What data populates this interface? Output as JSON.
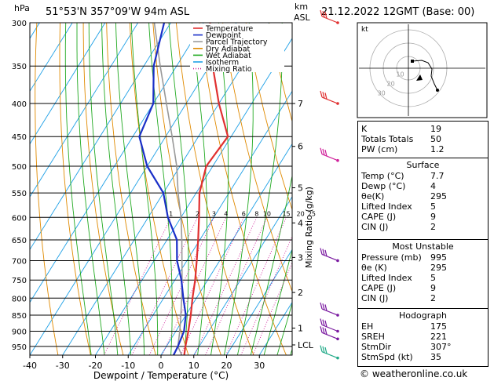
{
  "header": {
    "hpa_label": "hPa",
    "location": "51°53'N  357°09'W  94m  ASL",
    "km_label": "km",
    "asl_label": "ASL",
    "datetime": "21.12.2022  12GMT  (Base: 00)",
    "credit": "© weatheronline.co.uk"
  },
  "legend": {
    "items": [
      {
        "label": "Temperature",
        "color": "#e03030",
        "style": "solid"
      },
      {
        "label": "Dewpoint",
        "color": "#1a2fc8",
        "style": "solid"
      },
      {
        "label": "Parcel Trajectory",
        "color": "#999999",
        "style": "solid"
      },
      {
        "label": "Dry Adiabat",
        "color": "#e08a00",
        "style": "solid"
      },
      {
        "label": "Wet Adiabat",
        "color": "#22aa22",
        "style": "solid"
      },
      {
        "label": "Isotherm",
        "color": "#1ea0e6",
        "style": "solid"
      },
      {
        "label": "Mixing Ratio",
        "color": "#d0209a",
        "style": "dotted"
      }
    ]
  },
  "chart_data": {
    "type": "line",
    "xlabel": "Dewpoint / Temperature (°C)",
    "ylabel": "hPa",
    "right_axis_label": "Mixing Ratio (g/kg)",
    "xlim": [
      -40,
      40
    ],
    "ylim": [
      300,
      980
    ],
    "x_ticks": [
      -40,
      -30,
      -20,
      -10,
      0,
      10,
      20,
      30
    ],
    "pressure_ticks": [
      300,
      350,
      400,
      450,
      500,
      550,
      600,
      650,
      700,
      750,
      800,
      850,
      900,
      950
    ],
    "height_ticks": [
      {
        "label": "7",
        "p": 400
      },
      {
        "label": "6",
        "p": 466
      },
      {
        "label": "5",
        "p": 540
      },
      {
        "label": "4",
        "p": 612
      },
      {
        "label": "3",
        "p": 692
      },
      {
        "label": "2",
        "p": 784
      },
      {
        "label": "1",
        "p": 890
      },
      {
        "label": "LCL",
        "p": 945
      }
    ],
    "mixing_ratio_labels": [
      {
        "label": "1",
        "value": 1
      },
      {
        "label": "2",
        "value": 2
      },
      {
        "label": "3",
        "value": 3
      },
      {
        "label": "4",
        "value": 4
      },
      {
        "label": "6",
        "value": 6
      },
      {
        "label": "8",
        "value": 8
      },
      {
        "label": "10",
        "value": 10
      },
      {
        "label": "15",
        "value": 15
      },
      {
        "label": "20",
        "value": 20
      },
      {
        "label": "25",
        "value": 25
      }
    ],
    "series": [
      {
        "name": "Temperature",
        "p": [
          995,
          950,
          900,
          850,
          800,
          750,
          700,
          650,
          600,
          550,
          500,
          450,
          400,
          350,
          300
        ],
        "t": [
          7.7,
          5.8,
          3.8,
          1.5,
          -1.2,
          -3.8,
          -7,
          -10.5,
          -14.5,
          -19,
          -22,
          -21,
          -30,
          -39,
          -48
        ]
      },
      {
        "name": "Dewpoint",
        "p": [
          995,
          950,
          900,
          850,
          800,
          750,
          700,
          650,
          600,
          550,
          500,
          450,
          400,
          350,
          300
        ],
        "t": [
          4,
          3.5,
          2.5,
          0,
          -4,
          -8,
          -13,
          -17,
          -24,
          -30,
          -40,
          -48,
          -50,
          -57,
          -62
        ]
      },
      {
        "name": "Parcel Trajectory",
        "p": [
          995,
          950,
          900,
          850,
          800,
          750,
          700,
          650,
          600,
          550,
          500,
          450,
          400,
          350,
          300
        ],
        "t": [
          7.7,
          3.5,
          1.2,
          -1.5,
          -4.5,
          -7.8,
          -11.5,
          -15.5,
          -20,
          -25.5,
          -31,
          -38,
          -46,
          -55,
          -65
        ]
      }
    ]
  },
  "hodograph": {
    "label": "kt",
    "ring_labels": [
      "10",
      "20",
      "30"
    ]
  },
  "winds": {
    "barbs": [
      {
        "p": 300,
        "color": "#e03030"
      },
      {
        "p": 400,
        "color": "#e03030"
      },
      {
        "p": 490,
        "color": "#d0209a"
      },
      {
        "p": 700,
        "color": "#7a1aa0"
      },
      {
        "p": 850,
        "color": "#7a1aa0"
      },
      {
        "p": 900,
        "color": "#7a1aa0"
      },
      {
        "p": 925,
        "color": "#7a1aa0"
      },
      {
        "p": 990,
        "color": "#22aa88"
      }
    ]
  },
  "indices": {
    "rows": [
      {
        "key": "K",
        "value": "19"
      },
      {
        "key": "Totals Totals",
        "value": "50"
      },
      {
        "key": "PW (cm)",
        "value": "1.2"
      }
    ]
  },
  "surface": {
    "title": "Surface",
    "rows": [
      {
        "key": "Temp (°C)",
        "value": "7.7"
      },
      {
        "key": "Dewp (°C)",
        "value": "4"
      },
      {
        "key": "θe(K)",
        "value": "295"
      },
      {
        "key": "Lifted Index",
        "value": "5"
      },
      {
        "key": "CAPE (J)",
        "value": "9"
      },
      {
        "key": "CIN (J)",
        "value": "2"
      }
    ]
  },
  "most_unstable": {
    "title": "Most Unstable",
    "rows": [
      {
        "key": "Pressure (mb)",
        "value": "995"
      },
      {
        "key": "θe (K)",
        "value": "295"
      },
      {
        "key": "Lifted Index",
        "value": "5"
      },
      {
        "key": "CAPE (J)",
        "value": "9"
      },
      {
        "key": "CIN (J)",
        "value": "2"
      }
    ]
  },
  "hodograph_table": {
    "title": "Hodograph",
    "rows": [
      {
        "key": "EH",
        "value": "175"
      },
      {
        "key": "SREH",
        "value": "221"
      },
      {
        "key": "StmDir",
        "value": "307°"
      },
      {
        "key": "StmSpd (kt)",
        "value": "35"
      }
    ]
  }
}
